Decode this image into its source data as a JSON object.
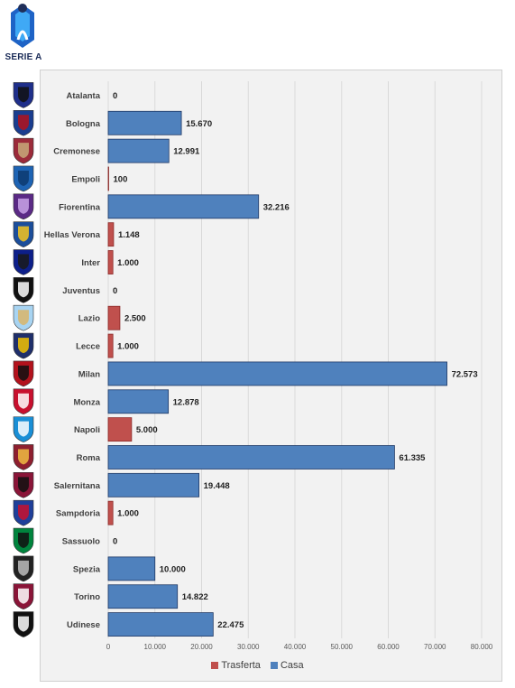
{
  "logo": {
    "text": "SERIE A",
    "icon": "serie-a-logo"
  },
  "colors": {
    "trasferta": "#c0504d",
    "casa": "#4f81bd",
    "casa_border": "#1f3864",
    "trasferta_border": "#8b2a28",
    "gridline": "#d9d9d9"
  },
  "chart_data": {
    "type": "bar",
    "orientation": "horizontal",
    "categories": [
      "Atalanta",
      "Bologna",
      "Cremonese",
      "Empoli",
      "Fiorentina",
      "Hellas Verona",
      "Inter",
      "Juventus",
      "Lazio",
      "Lecce",
      "Milan",
      "Monza",
      "Napoli",
      "Roma",
      "Salernitana",
      "Sampdoria",
      "Sassuolo",
      "Spezia",
      "Torino",
      "Udinese"
    ],
    "values": [
      0,
      15670,
      12991,
      100,
      32216,
      1148,
      1000,
      0,
      2500,
      1000,
      72573,
      12878,
      5000,
      61335,
      19448,
      1000,
      0,
      10000,
      14822,
      22475
    ],
    "value_labels": [
      "0",
      "15.670",
      "12.991",
      "100",
      "32.216",
      "1.148",
      "1.000",
      "0",
      "2.500",
      "1.000",
      "72.573",
      "12.878",
      "5.000",
      "61.335",
      "19.448",
      "1.000",
      "0",
      "10.000",
      "14.822",
      "22.475"
    ],
    "bar_series": [
      "Trasferta",
      "Casa",
      "Casa",
      "Trasferta",
      "Casa",
      "Trasferta",
      "Trasferta",
      "Trasferta",
      "Trasferta",
      "Trasferta",
      "Casa",
      "Casa",
      "Trasferta",
      "Casa",
      "Casa",
      "Trasferta",
      "Trasferta",
      "Casa",
      "Casa",
      "Casa"
    ],
    "xlim": [
      0,
      80000
    ],
    "ticks": [
      0,
      10000,
      20000,
      30000,
      40000,
      50000,
      60000,
      70000,
      80000
    ],
    "tick_labels": [
      "0",
      "10.000",
      "20.000",
      "30.000",
      "40.000",
      "50.000",
      "60.000",
      "70.000",
      "80.000"
    ],
    "grid": true,
    "legend": {
      "position": "bottom",
      "entries": [
        "Trasferta",
        "Casa"
      ]
    }
  },
  "crest_icons": [
    "atalanta-crest-icon",
    "bologna-crest-icon",
    "cremonese-crest-icon",
    "empoli-crest-icon",
    "fiorentina-crest-icon",
    "hellas-verona-crest-icon",
    "inter-crest-icon",
    "juventus-crest-icon",
    "lazio-crest-icon",
    "lecce-crest-icon",
    "milan-crest-icon",
    "monza-crest-icon",
    "napoli-crest-icon",
    "roma-crest-icon",
    "salernitana-crest-icon",
    "sampdoria-crest-icon",
    "sassuolo-crest-icon",
    "spezia-crest-icon",
    "torino-crest-icon",
    "udinese-crest-icon"
  ]
}
